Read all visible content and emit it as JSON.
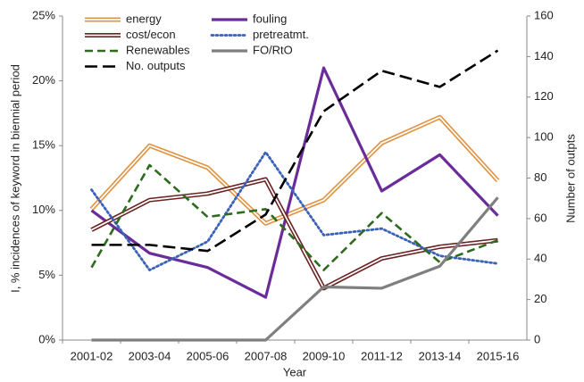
{
  "chart_data": {
    "type": "line",
    "categories": [
      "2001-02",
      "2003-04",
      "2005-06",
      "2007-08",
      "2009-10",
      "2011-12",
      "2013-14",
      "2015-16"
    ],
    "xlabel": "Year",
    "ylabel": "I, % incidences of keyword in biennial period",
    "y2label": "Number of outpts",
    "ylim": [
      0,
      25
    ],
    "yticks": [
      {
        "value": 0,
        "label": "0%"
      },
      {
        "value": 5,
        "label": "5%"
      },
      {
        "value": 10,
        "label": "10%"
      },
      {
        "value": 15,
        "label": "15%"
      },
      {
        "value": 20,
        "label": "20%"
      },
      {
        "value": 25,
        "label": "25%"
      }
    ],
    "y2lim": [
      0,
      160
    ],
    "y2ticks": [
      0,
      20,
      40,
      60,
      80,
      100,
      120,
      140,
      160
    ],
    "grid": false,
    "legend": "top-left",
    "series": [
      {
        "name": "energy",
        "color": "#e0923f",
        "style": "double",
        "values": [
          10.1,
          15.0,
          13.3,
          9.0,
          10.8,
          15.2,
          17.2,
          12.3
        ]
      },
      {
        "name": "fouling",
        "color": "#6a2c9a",
        "style": "solid",
        "values": [
          10.0,
          6.7,
          5.6,
          3.3,
          21.0,
          11.5,
          14.3,
          9.6
        ]
      },
      {
        "name": "cost/econ",
        "color": "#6b2222",
        "style": "double",
        "values": [
          8.5,
          10.8,
          11.3,
          12.4,
          4.0,
          6.3,
          7.2,
          7.7
        ]
      },
      {
        "name": "pretreatmt.",
        "color": "#3a62b8",
        "style": "dot",
        "values": [
          11.6,
          5.4,
          7.6,
          14.5,
          8.1,
          8.6,
          6.5,
          5.9
        ]
      },
      {
        "name": "Renewables",
        "color": "#2e6b1f",
        "style": "dash",
        "values": [
          5.6,
          13.5,
          9.5,
          10.1,
          5.4,
          9.8,
          6.0,
          7.7
        ]
      },
      {
        "name": "FO/RtO",
        "color": "#7f7f7f",
        "style": "solid",
        "values": [
          0,
          0,
          0,
          0,
          4.1,
          4.0,
          5.7,
          11.0
        ]
      },
      {
        "name": "No. outputs",
        "color": "#000000",
        "style": "longdash",
        "axis": "y2",
        "values": [
          47,
          47,
          44,
          62,
          113,
          133,
          125,
          143
        ]
      }
    ]
  }
}
